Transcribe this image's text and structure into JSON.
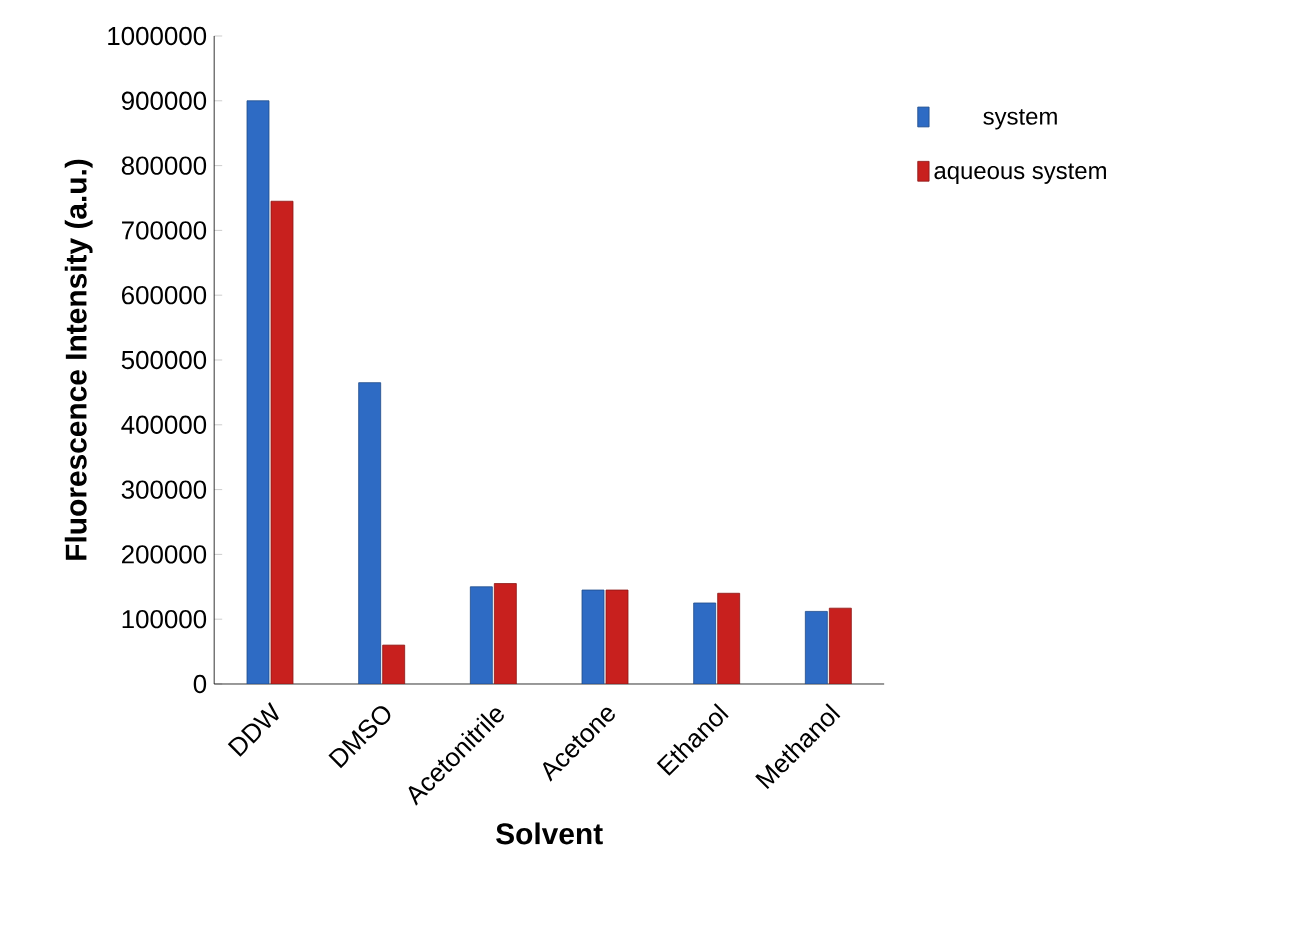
{
  "chart_data": {
    "type": "bar",
    "xlabel": "Solvent",
    "ylabel": "Fluorescence Intensity (a.u.)",
    "categories": [
      "DDW",
      "DMSO",
      "Acetonitrile",
      "Acetone",
      "Ethanol",
      "Methanol"
    ],
    "series": [
      {
        "name": "system",
        "color": "#2e6bc4",
        "values": [
          900000,
          465000,
          150000,
          145000,
          125000,
          112000
        ]
      },
      {
        "name": "aqueous system",
        "color": "#c8201e",
        "values": [
          745000,
          60000,
          155000,
          145000,
          140000,
          117000
        ]
      }
    ],
    "ylim": [
      0,
      1000000
    ],
    "yticks": [
      0,
      100000,
      200000,
      300000,
      400000,
      500000,
      600000,
      700000,
      800000,
      900000,
      1000000
    ],
    "legend": "top right",
    "grid": false
  }
}
